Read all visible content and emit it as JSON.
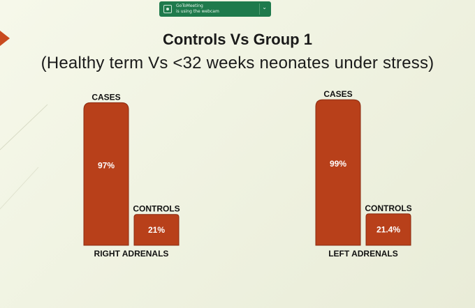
{
  "notification": {
    "app": "GoToMeeting",
    "message": "is using the webcam"
  },
  "colors": {
    "bar_fill": "#b8401a",
    "bar_stroke": "#8a2a10",
    "notification_bg": "#1f7a4c"
  },
  "chart_data": {
    "type": "bar",
    "title": "Controls Vs Group 1",
    "subtitle": "(Healthy term Vs <32 weeks neonates under stress)",
    "groups": [
      {
        "name": "RIGHT ADRENALS",
        "bars": [
          {
            "label": "CASES",
            "value": 97,
            "display": "97%"
          },
          {
            "label": "CONTROLS",
            "value": 21,
            "display": "21%"
          }
        ]
      },
      {
        "name": "LEFT ADRENALS",
        "bars": [
          {
            "label": "CASES",
            "value": 99,
            "display": "99%"
          },
          {
            "label": "CONTROLS",
            "value": 21.4,
            "display": "21.4%"
          }
        ]
      }
    ]
  }
}
